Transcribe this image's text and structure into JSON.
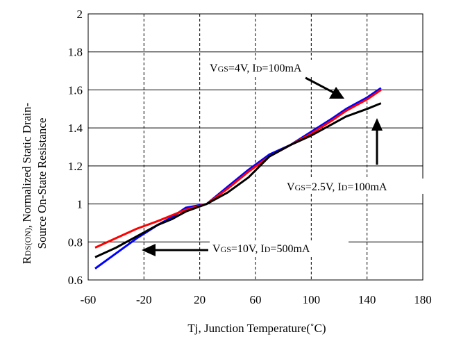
{
  "chart_data": {
    "type": "line",
    "xlabel": "Tj, Junction Temperature(˚C)",
    "ylabel_line1": "RDS(ON), Normalized Static Drain-",
    "ylabel_line1_main": "R",
    "ylabel_line1_sub": "DS(ON)",
    "ylabel_line1_rest": ", Normalized Static Drain-",
    "ylabel_line2": "Source On-State Resistance",
    "xlim": [
      -60,
      180
    ],
    "ylim": [
      0.6,
      2
    ],
    "xticks": [
      -60,
      -20,
      20,
      60,
      100,
      140,
      180
    ],
    "xtick_labels": [
      "-60",
      "-20",
      "20",
      "60",
      "100",
      "140",
      "180"
    ],
    "yticks": [
      0.6,
      0.8,
      1,
      1.2,
      1.4,
      1.6,
      1.8,
      2
    ],
    "ytick_labels": [
      "0.6",
      "0.8",
      "1",
      "1.2",
      "1.4",
      "1.6",
      "1.8",
      "2"
    ],
    "grid": "x-dashed, y-solid",
    "series": [
      {
        "color": "#0000ff",
        "x": [
          -55,
          -40,
          -25,
          -10,
          0,
          10,
          25,
          40,
          55,
          70,
          85,
          100,
          115,
          125,
          140,
          150
        ],
        "y": [
          0.66,
          0.74,
          0.82,
          0.89,
          0.93,
          0.98,
          1.0,
          1.09,
          1.18,
          1.26,
          1.31,
          1.38,
          1.45,
          1.5,
          1.56,
          1.61
        ]
      },
      {
        "color": "#ff0000",
        "x": [
          -55,
          -40,
          -25,
          -10,
          0,
          10,
          25,
          40,
          55,
          70,
          85,
          100,
          115,
          125,
          140,
          150
        ],
        "y": [
          0.77,
          0.82,
          0.87,
          0.91,
          0.94,
          0.97,
          1.0,
          1.08,
          1.17,
          1.25,
          1.31,
          1.37,
          1.44,
          1.49,
          1.55,
          1.6
        ]
      },
      {
        "color": "#000000",
        "x": [
          -55,
          -40,
          -25,
          -10,
          0,
          10,
          25,
          40,
          55,
          70,
          85,
          100,
          115,
          125,
          140,
          150
        ],
        "y": [
          0.72,
          0.77,
          0.83,
          0.89,
          0.92,
          0.96,
          1.0,
          1.06,
          1.14,
          1.25,
          1.31,
          1.36,
          1.42,
          1.46,
          1.5,
          1.53
        ]
      }
    ],
    "annotations": [
      {
        "text": "VGS=4V, ID=100mA",
        "v": "V",
        "gs": "GS",
        "eq1": "=4V, ",
        "i": "I",
        "d": "D",
        "eq2": "=100mA"
      },
      {
        "text": "VGS=2.5V, ID=100mA",
        "v": "V",
        "gs": "GS",
        "eq1": "=2.5V, ",
        "i": "I",
        "d": "D",
        "eq2": "=100mA"
      },
      {
        "text": "VGS=10V, ID=500mA",
        "v": "V",
        "gs": "GS",
        "eq1": "=10V, ",
        "i": "I",
        "d": "D",
        "eq2": "=500mA"
      }
    ]
  }
}
